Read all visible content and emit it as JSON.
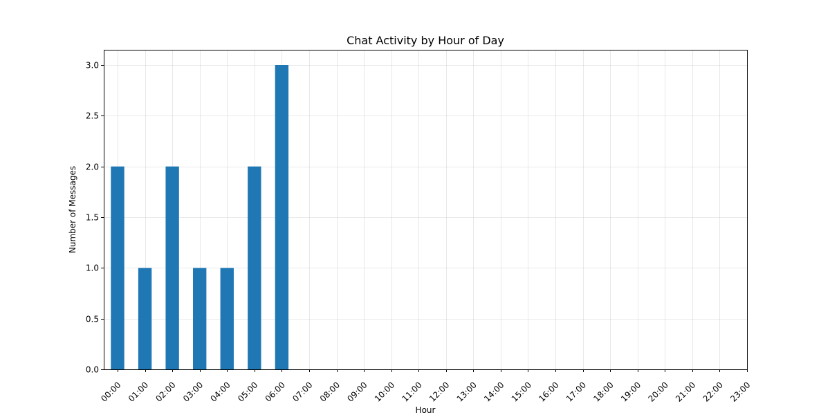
{
  "chart_data": {
    "type": "bar",
    "title": "Chat Activity by Hour of Day",
    "xlabel": "Hour",
    "ylabel": "Number of Messages",
    "categories": [
      "00:00",
      "01:00",
      "02:00",
      "03:00",
      "04:00",
      "05:00",
      "06:00",
      "07:00",
      "08:00",
      "09:00",
      "10:00",
      "11:00",
      "12:00",
      "13:00",
      "14:00",
      "15:00",
      "16:00",
      "17:00",
      "18:00",
      "19:00",
      "20:00",
      "21:00",
      "22:00",
      "23:00"
    ],
    "values": [
      2,
      1,
      2,
      1,
      1,
      2,
      3,
      0,
      0,
      0,
      0,
      0,
      0,
      0,
      0,
      0,
      0,
      0,
      0,
      0,
      0,
      0,
      0,
      0
    ],
    "ylim": [
      0,
      3.15
    ],
    "yticks": [
      0.0,
      0.5,
      1.0,
      1.5,
      2.0,
      2.5,
      3.0
    ],
    "ytick_labels": [
      "0.0",
      "0.5",
      "1.0",
      "1.5",
      "2.0",
      "2.5",
      "3.0"
    ],
    "grid": true,
    "bar_color": "#1f77b4"
  }
}
